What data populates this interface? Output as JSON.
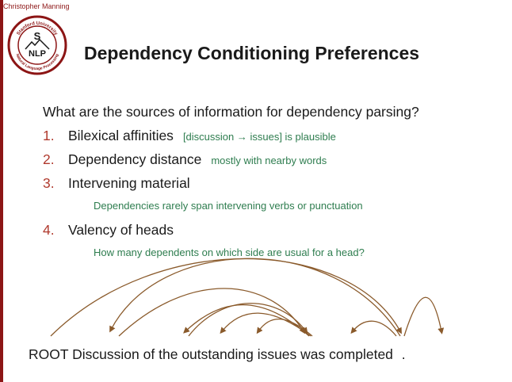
{
  "header": {
    "author": "Christopher Manning",
    "logo_top_text": "Stanford University",
    "logo_bottom_text": "Natural Language Processing",
    "logo_letter_top": "S",
    "logo_letter_bottom": "NLP"
  },
  "slide": {
    "title": "Dependency Conditioning Preferences",
    "question": "What are the sources of information for dependency parsing?",
    "items": [
      {
        "num": "1.",
        "label": "Bilexical affinities",
        "note": "[discussion → issues] is plausible"
      },
      {
        "num": "2.",
        "label": "Dependency distance",
        "note": "mostly with nearby words"
      },
      {
        "num": "3.",
        "label": "Intervening material",
        "subnote": "Dependencies rarely span intervening verbs or punctuation"
      },
      {
        "num": "4.",
        "label": "Valency of heads",
        "subnote": "How many dependents on which side are usual for a head?"
      }
    ]
  },
  "sentence": {
    "words": [
      "ROOT",
      "Discussion",
      "of",
      "the",
      "outstanding",
      "issues",
      "was",
      "completed",
      "."
    ]
  },
  "colors": {
    "accent": "#8c1515",
    "number": "#b03a2e",
    "note": "#2e7d4f",
    "arc": "#8a5a2b",
    "text": "#1a1a1a"
  }
}
